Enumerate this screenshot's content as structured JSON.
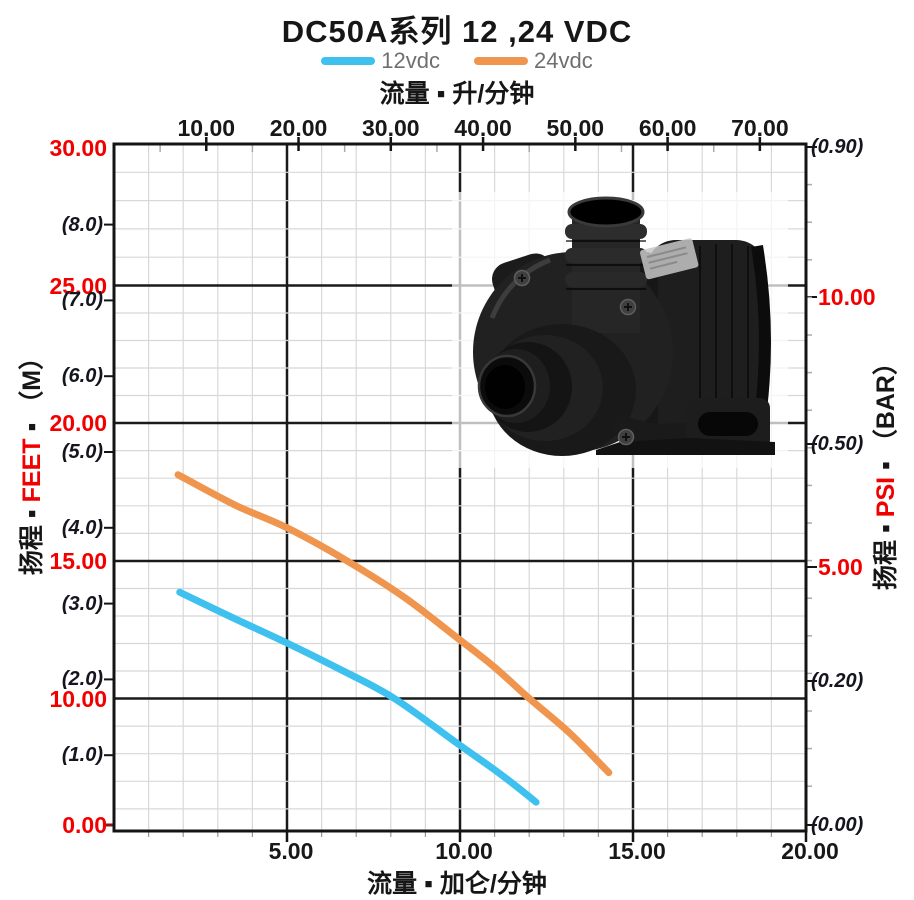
{
  "title": "DC50A系列  12 ,24 VDC",
  "legend": {
    "items": [
      {
        "label": "12vdc",
        "color": "#3fc1f0"
      },
      {
        "label": "24vdc",
        "color": "#f0954e"
      }
    ]
  },
  "axis_titles": {
    "top": "流量 ▪ 升/分钟",
    "bottom": "流量 ▪ 加仑/分钟",
    "left_pre": "扬程 ▪ ",
    "left_unit": "FEET",
    "left_post": " ▪ （M）",
    "right_pre": "扬程 ▪ ",
    "right_unit": "PSI",
    "right_post": " ▪ （BAR）"
  },
  "colors": {
    "accent_red": "#f20000",
    "grid_minor": "#d8d8d8",
    "grid_major": "#1a1a1a",
    "series_12vdc": "#3fc1f0",
    "series_24vdc": "#f0954e"
  },
  "chart_data": {
    "type": "line",
    "title": "DC50A系列  12 ,24 VDC",
    "grid": true,
    "legend_position": "top",
    "x_bottom": {
      "label": "流量 ▪ 加仑/分钟",
      "unit": "gal/min",
      "range": [
        0,
        20
      ],
      "ticks": [
        5,
        10,
        15,
        20
      ],
      "tick_labels": [
        "5.00",
        "10.00",
        "15.00",
        "20.00"
      ]
    },
    "x_top": {
      "label": "流量 ▪ 升/分钟",
      "unit": "L/min",
      "range": [
        0,
        75
      ],
      "ticks": [
        10,
        20,
        30,
        40,
        50,
        60,
        70
      ],
      "tick_labels": [
        "10.00",
        "20.00",
        "30.00",
        "40.00",
        "50.00",
        "60.00",
        "70.00"
      ]
    },
    "y_left_feet": {
      "unit": "FEET",
      "ticks": [
        30,
        25,
        20,
        15,
        10,
        0
      ],
      "tick_labels": [
        "30.00",
        "25.00",
        "20.00",
        "15.00",
        "10.00",
        "0.00"
      ]
    },
    "y_left_meters": {
      "label": "扬程 ▪ FEET ▪ （M）",
      "unit": "M",
      "range": [
        0,
        9.05
      ],
      "ticks": [
        8,
        7,
        6,
        5,
        4,
        3,
        2,
        1
      ],
      "tick_labels": [
        "(8.0)",
        "(7.0)",
        "(6.0)",
        "(5.0)",
        "(4.0)",
        "(3.0)",
        "(2.0)",
        "(1.0)"
      ]
    },
    "y_right_psi": {
      "label": "扬程 ▪ PSI ▪ （BAR）",
      "unit": "PSI",
      "ticks": [
        10,
        5
      ],
      "tick_labels": [
        "10.00",
        "5.00"
      ]
    },
    "y_right_bar": {
      "unit": "BAR",
      "ticks": [
        0.9,
        0.5,
        0.2,
        0
      ],
      "tick_labels": [
        "(0.90)",
        "(0.50)",
        "(0.20)",
        "(0.00)"
      ]
    },
    "series": [
      {
        "name": "12vdc",
        "color": "#3fc1f0",
        "points_gpm_m": [
          [
            1.9,
            3.15
          ],
          [
            3.4,
            2.82
          ],
          [
            5.0,
            2.48
          ],
          [
            6.5,
            2.14
          ],
          [
            8.1,
            1.75
          ],
          [
            10.0,
            1.13
          ],
          [
            11.2,
            0.74
          ],
          [
            12.2,
            0.38
          ]
        ]
      },
      {
        "name": "24vdc",
        "color": "#f0954e",
        "points_gpm_m": [
          [
            1.85,
            4.7
          ],
          [
            3.5,
            4.3
          ],
          [
            5.0,
            4.0
          ],
          [
            6.75,
            3.56
          ],
          [
            8.4,
            3.08
          ],
          [
            10.0,
            2.52
          ],
          [
            11.0,
            2.16
          ],
          [
            12.0,
            1.75
          ],
          [
            13.2,
            1.28
          ],
          [
            14.3,
            0.77
          ]
        ]
      }
    ]
  }
}
